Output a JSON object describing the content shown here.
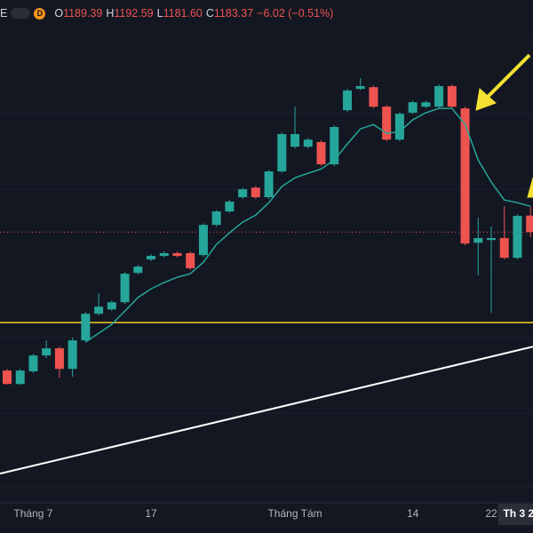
{
  "header": {
    "symbol_tail": "E",
    "interval": "D",
    "o_key": "O",
    "open": "1189.39",
    "h_key": "H",
    "high": "1192.59",
    "l_key": "L",
    "low": "1181.60",
    "c_key": "C",
    "close": "1183.37",
    "change": "−6.02 (−0.51%)"
  },
  "chart_data": {
    "type": "candlestick",
    "categories": [
      null,
      null,
      "Tháng 7",
      null,
      null,
      null,
      null,
      null,
      null,
      null,
      null,
      "17",
      null,
      null,
      null,
      null,
      null,
      null,
      null,
      null,
      null,
      null,
      "Tháng Tám",
      null,
      null,
      null,
      null,
      null,
      null,
      null,
      null,
      "14",
      null,
      null,
      null,
      null,
      null,
      "22",
      null,
      "Th 3 2",
      null
    ],
    "open": [
      1132.9,
      1128.0,
      1132.6,
      1138.4,
      1141.0,
      1133.5,
      1143.9,
      1153.6,
      1155.2,
      1157.8,
      1168.5,
      1173.4,
      1174.7,
      1175.7,
      1175.7,
      1175.0,
      1186.0,
      1190.9,
      1196.1,
      1199.6,
      1196.1,
      1205.5,
      1214.5,
      1214.5,
      1216.2,
      1208.1,
      1227.8,
      1235.6,
      1236.2,
      1229.1,
      1217.1,
      1226.9,
      1229.1,
      1229.1,
      1236.6,
      1228.5,
      1179.5,
      1180.5,
      1181.2,
      1174.0,
      1189.39
    ],
    "high": [
      1133.5,
      1133.5,
      1139.0,
      1143.9,
      1141.6,
      1144.9,
      1154.2,
      1161.1,
      1158.4,
      1168.8,
      1171.4,
      1175.3,
      1176.3,
      1176.3,
      1176.3,
      1186.6,
      1191.5,
      1195.1,
      1199.6,
      1200.2,
      1206.1,
      1219.7,
      1229.1,
      1217.7,
      1216.8,
      1222.3,
      1235.6,
      1239.5,
      1236.8,
      1229.7,
      1227.1,
      1231.3,
      1231.3,
      1237.2,
      1237.2,
      1229.1,
      1188.6,
      1185.4,
      1192.8,
      1189.9,
      1192.59
    ],
    "low": [
      1127.7,
      1127.7,
      1132.0,
      1137.4,
      1130.3,
      1130.6,
      1143.3,
      1153.0,
      1154.6,
      1157.2,
      1167.9,
      1172.8,
      1174.1,
      1174.1,
      1169.6,
      1174.4,
      1185.4,
      1190.3,
      1195.5,
      1195.5,
      1195.5,
      1204.9,
      1213.9,
      1213.9,
      1207.5,
      1207.5,
      1227.2,
      1235.0,
      1228.5,
      1216.5,
      1216.5,
      1226.3,
      1228.5,
      1228.5,
      1228.5,
      1178.6,
      1167.6,
      1153.9,
      1173.4,
      1173.4,
      1181.6
    ],
    "close": [
      1128.0,
      1132.9,
      1138.4,
      1141.0,
      1133.5,
      1143.9,
      1153.6,
      1156.2,
      1157.8,
      1168.2,
      1170.8,
      1174.7,
      1175.7,
      1174.7,
      1170.2,
      1186.0,
      1190.9,
      1194.5,
      1199.0,
      1196.1,
      1205.5,
      1219.1,
      1219.1,
      1217.1,
      1208.1,
      1221.7,
      1235.0,
      1236.6,
      1229.1,
      1217.1,
      1226.5,
      1230.7,
      1230.7,
      1236.6,
      1229.1,
      1179.2,
      1181.2,
      1181.2,
      1174.0,
      1189.3,
      1183.37
    ],
    "ma": [
      null,
      null,
      null,
      null,
      null,
      null,
      1143.3,
      1146.5,
      1149.7,
      1154.6,
      1159.5,
      1162.7,
      1165.0,
      1166.9,
      1168.2,
      1172.4,
      1178.9,
      1183.1,
      1187.0,
      1189.6,
      1194.1,
      1200.0,
      1203.2,
      1204.8,
      1206.4,
      1209.7,
      1215.5,
      1221.0,
      1222.6,
      1219.4,
      1220.0,
      1224.3,
      1226.9,
      1228.5,
      1228.5,
      1222.6,
      1209.7,
      1201.6,
      1195.1,
      1194.1,
      1192.8
    ],
    "ma_color": "#26a69a",
    "up_color": "#26a69a",
    "down_color": "#ef5350",
    "hline": 1150.4,
    "hline_color": "#f2d024",
    "trendline": [
      1095.3,
      1141.6
    ],
    "trendline_color": "#ffffff",
    "ylim": [
      1085,
      1268
    ]
  }
}
